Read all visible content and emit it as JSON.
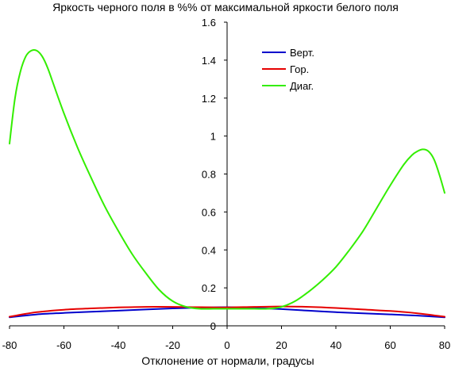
{
  "chart_data": {
    "type": "line",
    "title": "Яркость черного поля в %% от максимальной яркости белого поля",
    "xlabel": "Отклонение от нормали, градусы",
    "ylabel": "",
    "xlim": [
      -80,
      80
    ],
    "ylim": [
      0,
      1.6
    ],
    "x_ticks": [
      -80,
      -60,
      -40,
      -20,
      0,
      20,
      40,
      60,
      80
    ],
    "y_ticks": [
      0,
      0.2,
      0.4,
      0.6,
      0.8,
      1,
      1.2,
      1.4,
      1.6
    ],
    "x_tick_labels": [
      "-80",
      "-60",
      "-40",
      "-20",
      "0",
      "20",
      "40",
      "60",
      "80"
    ],
    "y_tick_labels": [
      "0",
      "0.2",
      "0.4",
      "0.6",
      "0.8",
      "1",
      "1.2",
      "1.4",
      "1.6"
    ],
    "grid": false,
    "legend_position": "top-right",
    "series": [
      {
        "name": "Верт.",
        "color": "#0000cc",
        "x": [
          -80,
          -70,
          -60,
          -50,
          -40,
          -30,
          -20,
          -10,
          0,
          10,
          20,
          30,
          40,
          50,
          60,
          70,
          80
        ],
        "y": [
          0.045,
          0.06,
          0.068,
          0.074,
          0.08,
          0.086,
          0.092,
          0.096,
          0.098,
          0.094,
          0.088,
          0.08,
          0.072,
          0.066,
          0.06,
          0.054,
          0.045
        ]
      },
      {
        "name": "Гор.",
        "color": "#e60000",
        "x": [
          -80,
          -70,
          -60,
          -50,
          -40,
          -30,
          -20,
          -10,
          0,
          10,
          20,
          30,
          40,
          50,
          60,
          70,
          80
        ],
        "y": [
          0.048,
          0.072,
          0.085,
          0.092,
          0.097,
          0.1,
          0.1,
          0.098,
          0.097,
          0.1,
          0.102,
          0.1,
          0.094,
          0.086,
          0.078,
          0.066,
          0.048
        ]
      },
      {
        "name": "Диаг.",
        "color": "#33ee00",
        "x": [
          -80,
          -78,
          -76,
          -74,
          -72,
          -70,
          -68,
          -66,
          -64,
          -60,
          -55,
          -50,
          -45,
          -40,
          -35,
          -30,
          -25,
          -20,
          -15,
          -10,
          -5,
          0,
          5,
          10,
          15,
          20,
          25,
          30,
          35,
          40,
          45,
          50,
          55,
          60,
          65,
          68,
          70,
          72,
          74,
          76,
          78,
          80
        ],
        "y": [
          0.96,
          1.2,
          1.34,
          1.42,
          1.45,
          1.45,
          1.42,
          1.36,
          1.28,
          1.12,
          0.94,
          0.78,
          0.63,
          0.5,
          0.38,
          0.28,
          0.19,
          0.13,
          0.1,
          0.09,
          0.09,
          0.09,
          0.09,
          0.09,
          0.09,
          0.1,
          0.13,
          0.18,
          0.24,
          0.31,
          0.4,
          0.5,
          0.62,
          0.74,
          0.85,
          0.9,
          0.92,
          0.93,
          0.92,
          0.88,
          0.8,
          0.7
        ]
      }
    ]
  }
}
